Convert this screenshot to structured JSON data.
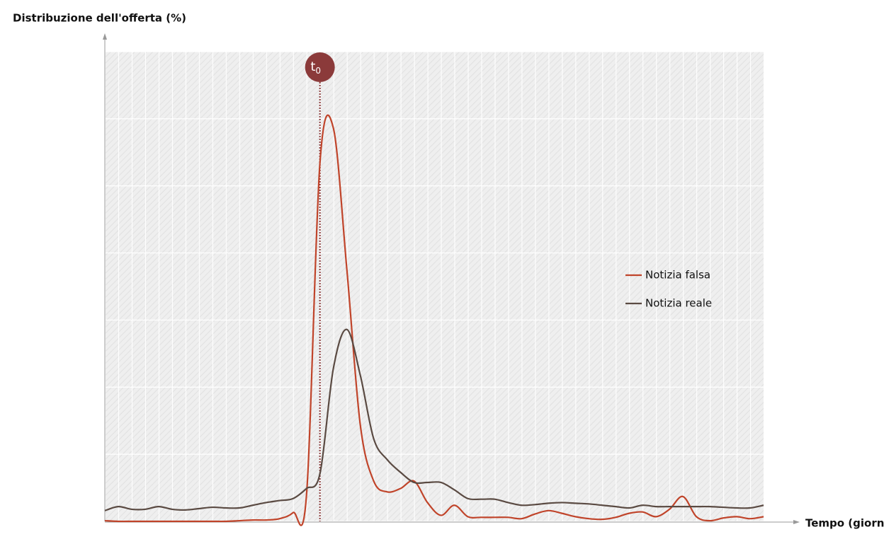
{
  "chart_data": {
    "type": "line",
    "y_label": "Distribuzione dell'offerta (%)",
    "x_label": "Tempo (giorni)",
    "x": [
      0,
      1,
      2,
      3,
      4,
      5,
      6,
      7,
      8,
      9,
      10,
      11,
      12,
      13,
      14,
      15,
      16,
      17,
      18,
      19,
      20,
      21,
      22,
      23,
      24,
      25,
      26,
      27,
      28,
      29,
      30,
      31,
      32,
      33,
      34,
      35,
      36,
      37,
      38,
      39,
      40,
      41,
      42,
      43,
      44,
      45,
      46,
      47,
      48,
      49
    ],
    "xlim": [
      0,
      49
    ],
    "ylim": [
      0,
      7
    ],
    "yticks": [
      0,
      1,
      2,
      3,
      4,
      5,
      6,
      7
    ],
    "grid": true,
    "legend": "right",
    "annotation": {
      "label": "t",
      "subscript": "0",
      "x": 16,
      "color": "#8b3a3a"
    },
    "series": [
      {
        "name": "Notizia falsa",
        "color": "#c0442a",
        "values": [
          0.01,
          0,
          0,
          0,
          0,
          0,
          0,
          0,
          0,
          0,
          0.01,
          0.02,
          0.02,
          0.04,
          0.13,
          0.39,
          5.34,
          5.86,
          3.76,
          1.44,
          0.6,
          0.44,
          0.49,
          0.6,
          0.28,
          0.09,
          0.24,
          0.07,
          0.06,
          0.06,
          0.06,
          0.04,
          0.11,
          0.16,
          0.12,
          0.07,
          0.04,
          0.03,
          0.06,
          0.12,
          0.14,
          0.07,
          0.18,
          0.37,
          0.07,
          0.01,
          0.05,
          0.07,
          0.04,
          0.07
        ]
      },
      {
        "name": "Notizia reale",
        "color": "#5a4a42",
        "values": [
          0.16,
          0.22,
          0.18,
          0.18,
          0.22,
          0.18,
          0.17,
          0.19,
          0.21,
          0.2,
          0.2,
          0.24,
          0.28,
          0.31,
          0.34,
          0.49,
          0.71,
          2.28,
          2.86,
          2.18,
          1.23,
          0.92,
          0.73,
          0.58,
          0.58,
          0.58,
          0.47,
          0.34,
          0.33,
          0.33,
          0.28,
          0.24,
          0.25,
          0.27,
          0.28,
          0.27,
          0.26,
          0.24,
          0.22,
          0.2,
          0.24,
          0.22,
          0.22,
          0.22,
          0.22,
          0.22,
          0.21,
          0.2,
          0.2,
          0.24
        ]
      }
    ]
  }
}
